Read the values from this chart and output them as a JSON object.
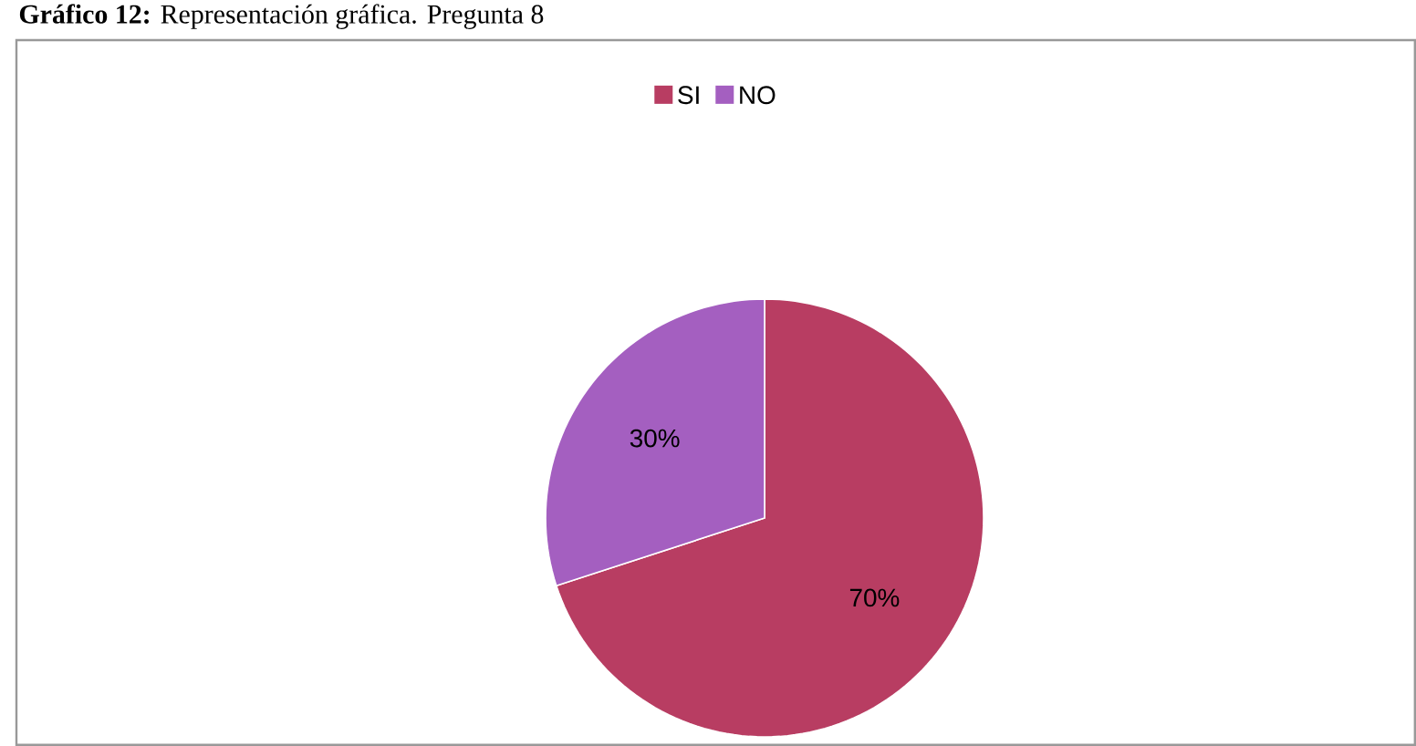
{
  "chart_data": {
    "type": "pie",
    "title": "**Gráfico 12:** Representación gráfica. Pregunta 8",
    "categories": [
      "SI",
      "NO"
    ],
    "values": [
      70,
      30
    ],
    "colors": [
      "#b83d62",
      "#a45fc0"
    ],
    "value_labels": [
      "70%",
      "30%"
    ],
    "legend": "top"
  }
}
